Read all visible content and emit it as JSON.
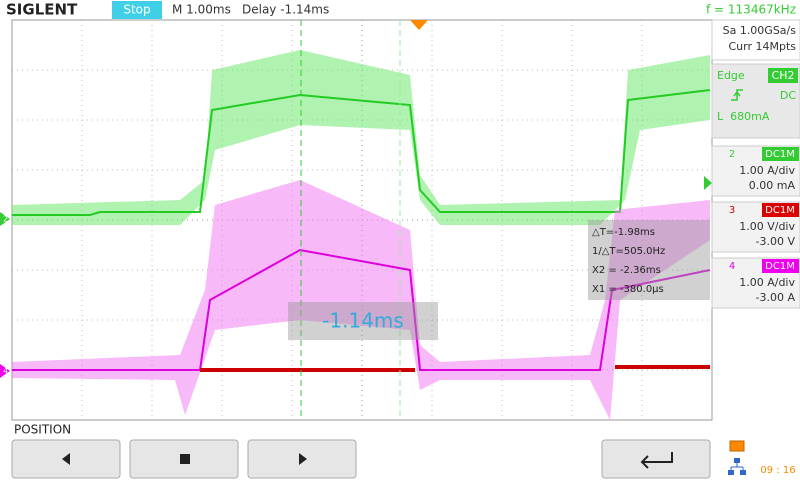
{
  "header": {
    "brand": "SIGLENT",
    "status": "Stop",
    "timebase": "M 1.00ms",
    "delay": "Delay -1.14ms",
    "frequency": "f = 113467kHz"
  },
  "acquisition": {
    "sample_rate": "Sa 1.00GSa/s",
    "memory": "Curr 14Mpts"
  },
  "trigger": {
    "type": "Edge",
    "source": "CH2",
    "coupling": "DC",
    "level": "L  680mA"
  },
  "channels": [
    {
      "number": "2",
      "coupling": "DC1M",
      "scale": "1.00 A/div",
      "offset": "0.00 mA"
    },
    {
      "number": "3",
      "coupling": "DC1M",
      "scale": "1.00 V/div",
      "offset": "-3.00 V"
    },
    {
      "number": "4",
      "coupling": "DC1M",
      "scale": "1.00 A/div",
      "offset": "-3.00 A"
    }
  ],
  "cursors": {
    "delta_t": "△T=-1.98ms",
    "inverse_delta_t": "1/△T=505.0Hz",
    "x2": "X2 = -2.36ms",
    "x1": "X1 = -380.0µs"
  },
  "delay_popup": "-1.14ms",
  "markers": {
    "ch2": "2",
    "ch4": "4"
  },
  "footer": {
    "label": "POSITION",
    "clock": "09 : 16"
  }
}
